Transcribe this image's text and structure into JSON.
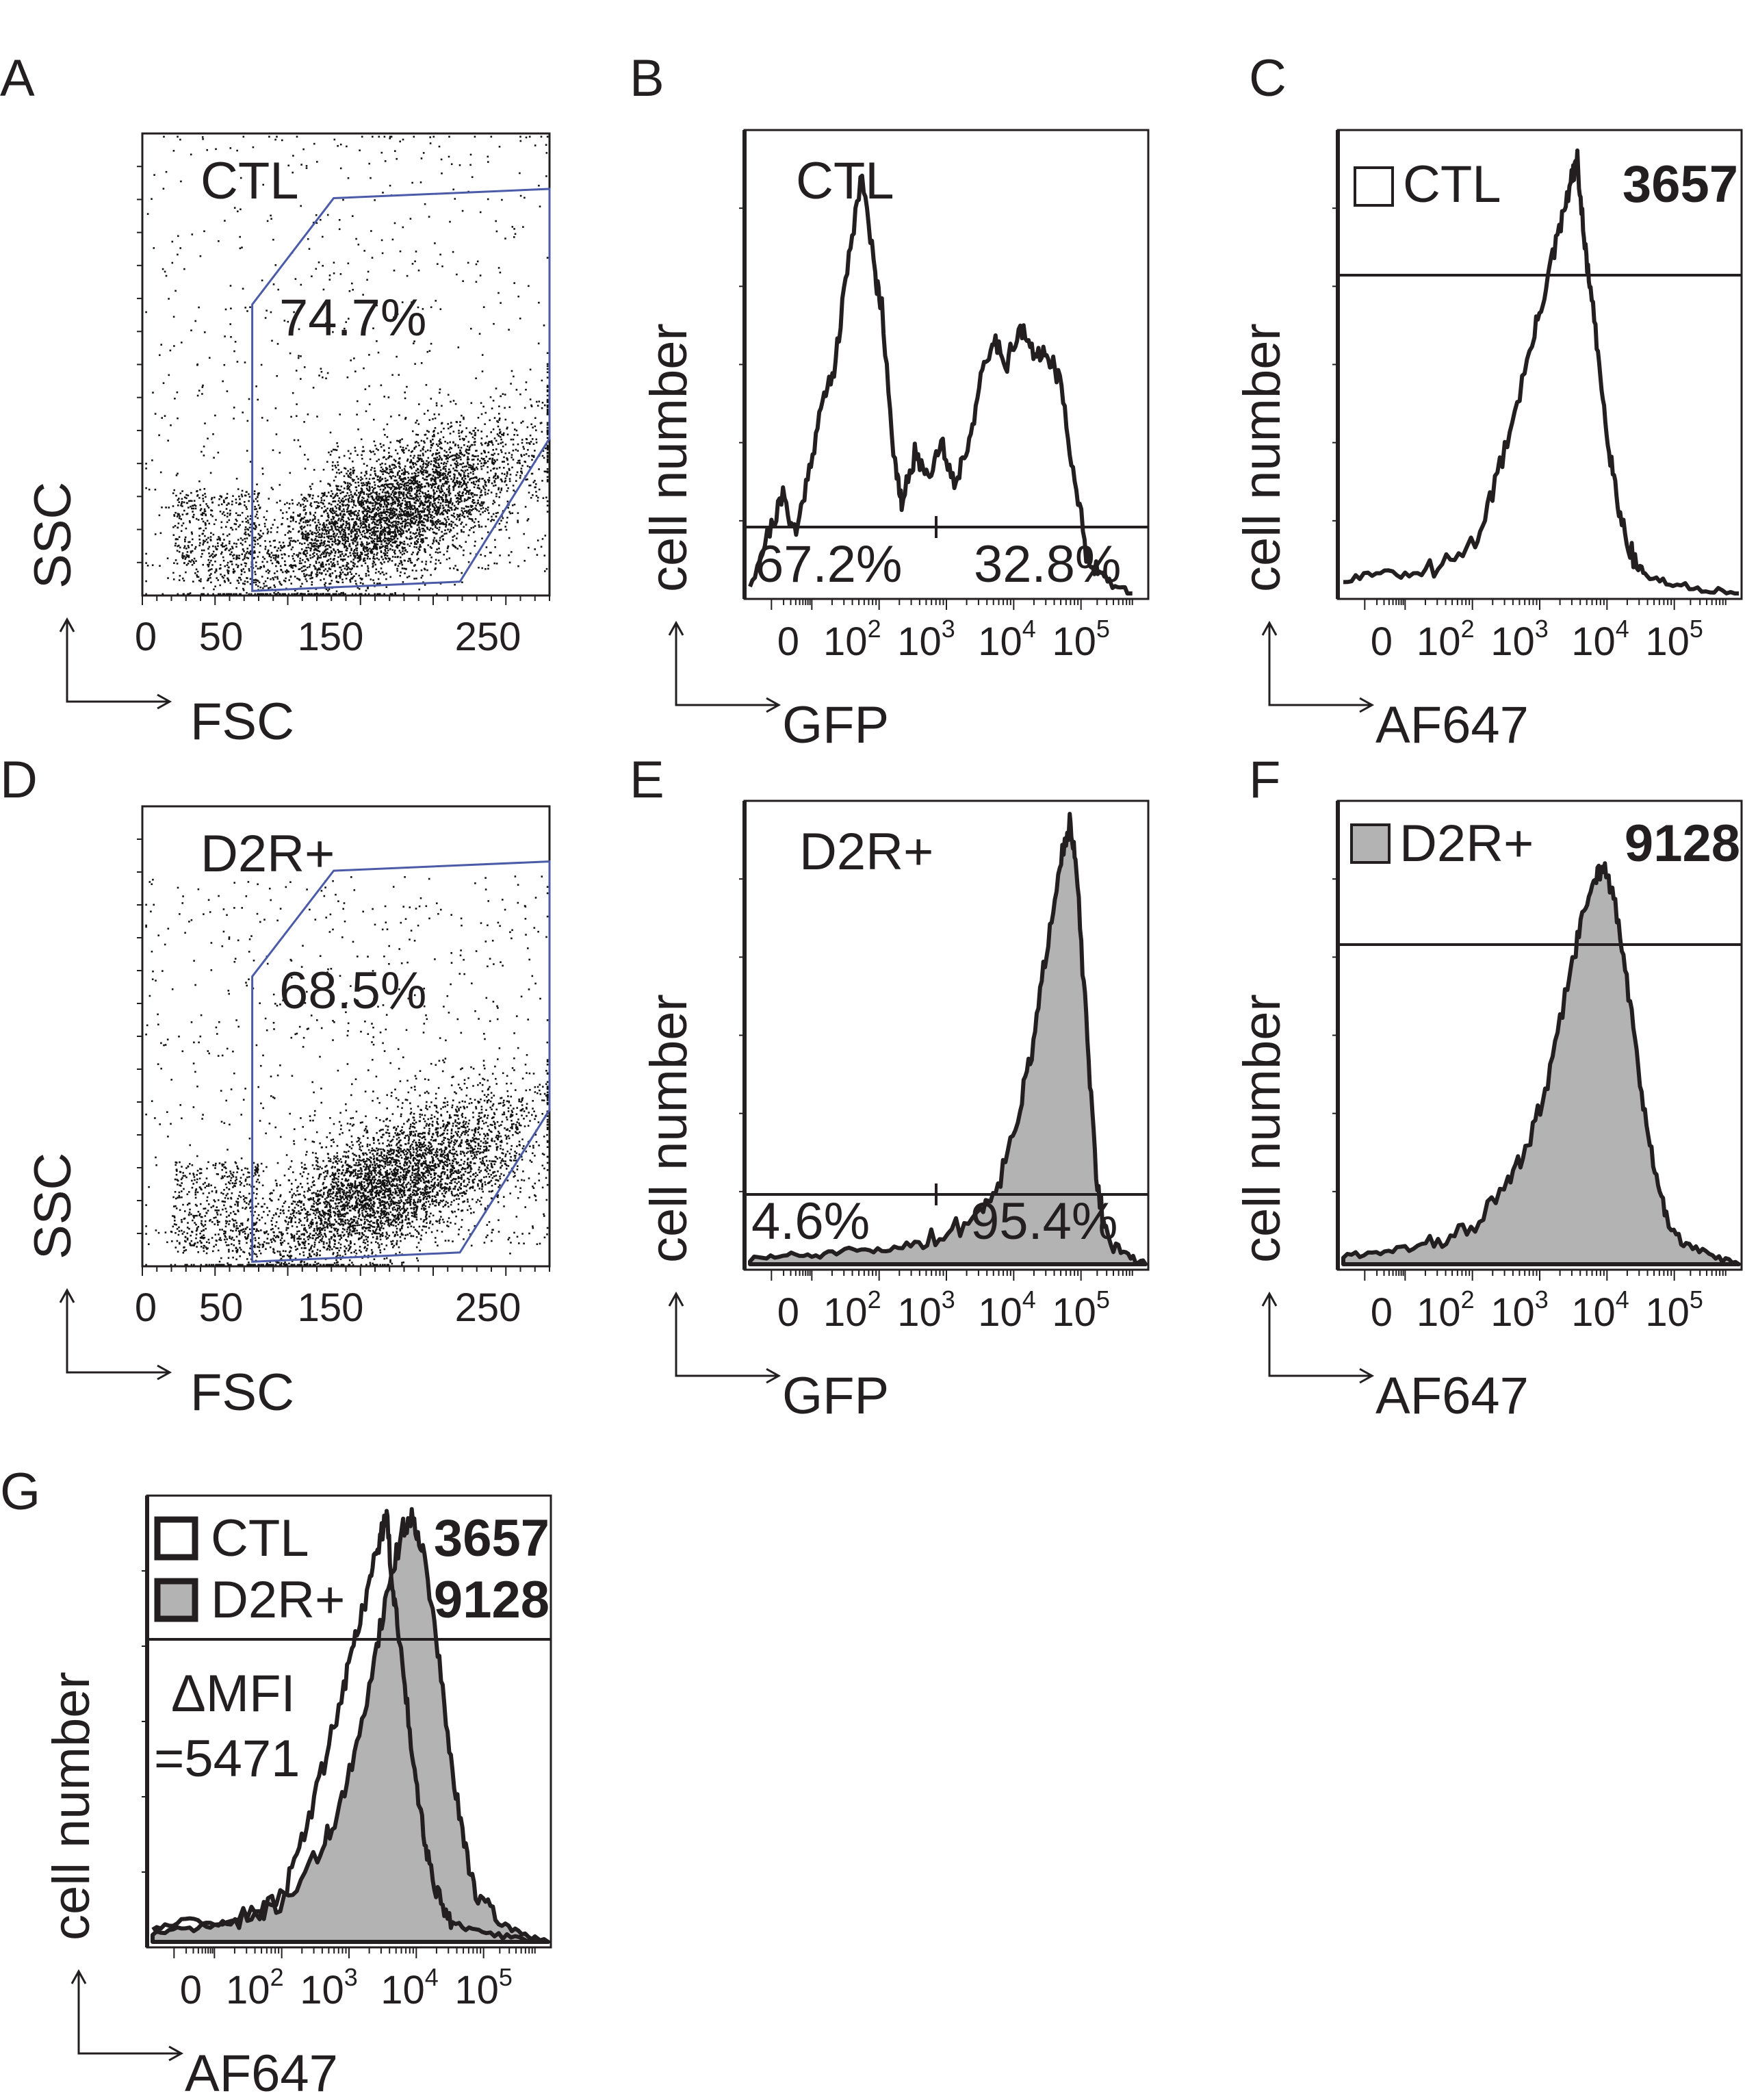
{
  "figure": {
    "panel_letters": [
      "A",
      "B",
      "C",
      "D",
      "E",
      "F",
      "G"
    ]
  },
  "chart_data": [
    {
      "panel": "A",
      "type": "scatter",
      "title": "CTL",
      "xlabel": "FSC",
      "ylabel": "SSC",
      "x_ticks": [
        "0",
        "50",
        "150",
        "250"
      ],
      "xlim": [
        0,
        280
      ],
      "gate_percent": "74.7%",
      "gate_color": "#4b5ba8"
    },
    {
      "panel": "B",
      "type": "area",
      "title": "CTL",
      "xlabel": "GFP",
      "ylabel": "cell number",
      "x_ticks": [
        "0",
        "10",
        "10",
        "10",
        "10"
      ],
      "x_tick_exps": [
        "",
        "2",
        "3",
        "4",
        "5"
      ],
      "xlim": [
        0,
        6.0
      ],
      "gate_left_percent": "67.2%",
      "gate_right_percent": "32.8%",
      "series": [
        {
          "name": "CTL",
          "fill": "none",
          "x": [
            0.0,
            0.3,
            0.5,
            0.7,
            0.9,
            1.1,
            1.3,
            1.5,
            1.7,
            1.9,
            2.0,
            2.2,
            2.3,
            2.5,
            2.7,
            2.9,
            3.1,
            3.3,
            3.5,
            3.7,
            3.9,
            4.1,
            4.3,
            4.5,
            4.7,
            4.9,
            5.1,
            5.3,
            5.5,
            5.8
          ],
          "values": [
            0.02,
            0.15,
            0.23,
            0.14,
            0.3,
            0.45,
            0.55,
            0.8,
            1.0,
            0.75,
            0.68,
            0.3,
            0.21,
            0.33,
            0.28,
            0.36,
            0.26,
            0.35,
            0.5,
            0.6,
            0.55,
            0.63,
            0.56,
            0.58,
            0.5,
            0.3,
            0.1,
            0.05,
            0.02,
            0.0
          ]
        }
      ]
    },
    {
      "panel": "C",
      "type": "area",
      "title": "CTL",
      "xlabel": "AF647",
      "ylabel": "cell number",
      "x_ticks": [
        "0",
        "10",
        "10",
        "10",
        "10"
      ],
      "x_tick_exps": [
        "",
        "2",
        "3",
        "4",
        "5"
      ],
      "xlim": [
        0,
        6.0
      ],
      "legend": [
        {
          "label": "CTL",
          "mfi": "3657",
          "fill": "#ffffff"
        }
      ],
      "series": [
        {
          "name": "CTL",
          "fill": "none",
          "x": [
            0.0,
            0.5,
            1.0,
            1.5,
            2.0,
            2.3,
            2.6,
            2.9,
            3.1,
            3.3,
            3.45,
            3.55,
            3.65,
            3.75,
            3.9,
            4.05,
            4.2,
            4.4,
            4.6,
            5.0,
            5.5,
            6.0
          ],
          "values": [
            0.03,
            0.05,
            0.04,
            0.06,
            0.12,
            0.25,
            0.42,
            0.6,
            0.73,
            0.85,
            0.95,
            1.0,
            0.82,
            0.7,
            0.5,
            0.32,
            0.18,
            0.08,
            0.04,
            0.02,
            0.01,
            0.0
          ]
        }
      ]
    },
    {
      "panel": "D",
      "type": "scatter",
      "title": "D2R+",
      "xlabel": "FSC",
      "ylabel": "SSC",
      "x_ticks": [
        "0",
        "50",
        "150",
        "250"
      ],
      "xlim": [
        0,
        280
      ],
      "gate_percent": "68.5%",
      "gate_color": "#4b5ba8"
    },
    {
      "panel": "E",
      "type": "area",
      "title": "D2R+",
      "xlabel": "GFP",
      "ylabel": "cell number",
      "x_ticks": [
        "0",
        "10",
        "10",
        "10",
        "10"
      ],
      "x_tick_exps": [
        "",
        "2",
        "3",
        "4",
        "5"
      ],
      "xlim": [
        0,
        6.0
      ],
      "gate_left_percent": "4.6%",
      "gate_right_percent": "95.4%",
      "series": [
        {
          "name": "D2R+",
          "fill": "#b3b3b3",
          "x": [
            0.0,
            0.5,
            1.0,
            1.5,
            2.0,
            2.5,
            3.0,
            3.5,
            3.8,
            4.1,
            4.3,
            4.5,
            4.7,
            4.85,
            4.95,
            5.1,
            5.25,
            5.4,
            5.7,
            6.0
          ],
          "values": [
            0.01,
            0.02,
            0.02,
            0.03,
            0.03,
            0.05,
            0.07,
            0.12,
            0.2,
            0.36,
            0.5,
            0.72,
            0.92,
            1.0,
            0.9,
            0.55,
            0.2,
            0.07,
            0.02,
            0.0
          ]
        }
      ]
    },
    {
      "panel": "F",
      "type": "area",
      "title": "D2R+",
      "xlabel": "AF647",
      "ylabel": "cell number",
      "x_ticks": [
        "0",
        "10",
        "10",
        "10",
        "10"
      ],
      "x_tick_exps": [
        "",
        "2",
        "3",
        "4",
        "5"
      ],
      "xlim": [
        0,
        6.0
      ],
      "legend": [
        {
          "label": "D2R+",
          "mfi": "9128",
          "fill": "#b3b3b3"
        }
      ],
      "series": [
        {
          "name": "D2R+",
          "fill": "#b3b3b3",
          "x": [
            0.0,
            0.5,
            1.0,
            1.5,
            2.0,
            2.5,
            2.8,
            3.1,
            3.4,
            3.6,
            3.8,
            3.95,
            4.1,
            4.3,
            4.5,
            4.7,
            4.9,
            5.2,
            5.6,
            6.0
          ],
          "values": [
            0.02,
            0.03,
            0.04,
            0.06,
            0.1,
            0.2,
            0.3,
            0.45,
            0.7,
            0.85,
            0.97,
            1.0,
            0.92,
            0.72,
            0.45,
            0.25,
            0.12,
            0.05,
            0.02,
            0.0
          ]
        }
      ]
    },
    {
      "panel": "G",
      "type": "area",
      "xlabel": "AF647",
      "ylabel": "cell number",
      "x_ticks": [
        "0",
        "10",
        "10",
        "10",
        "10"
      ],
      "x_tick_exps": [
        "",
        "2",
        "3",
        "4",
        "5"
      ],
      "xlim": [
        0,
        6.0
      ],
      "annotation_line1": "ΔMFI",
      "annotation_line2": "=5471",
      "legend": [
        {
          "label": "CTL",
          "mfi": "3657",
          "fill": "#ffffff"
        },
        {
          "label": "D2R+",
          "mfi": "9128",
          "fill": "#b3b3b3"
        }
      ],
      "series": [
        {
          "name": "D2R+",
          "fill": "#b3b3b3",
          "x": [
            0.0,
            0.5,
            1.0,
            1.5,
            2.0,
            2.5,
            2.8,
            3.1,
            3.4,
            3.6,
            3.8,
            3.95,
            4.1,
            4.3,
            4.5,
            4.7,
            4.9,
            5.2,
            5.6,
            6.0
          ],
          "values": [
            0.02,
            0.03,
            0.04,
            0.06,
            0.1,
            0.2,
            0.3,
            0.45,
            0.7,
            0.85,
            0.97,
            1.0,
            0.92,
            0.72,
            0.45,
            0.25,
            0.12,
            0.05,
            0.02,
            0.0
          ]
        },
        {
          "name": "CTL",
          "fill": "none",
          "x": [
            0.0,
            0.5,
            1.0,
            1.5,
            2.0,
            2.3,
            2.6,
            2.9,
            3.1,
            3.3,
            3.45,
            3.55,
            3.65,
            3.75,
            3.9,
            4.05,
            4.2,
            4.4,
            4.6,
            5.0,
            5.5,
            6.0
          ],
          "values": [
            0.03,
            0.05,
            0.04,
            0.06,
            0.12,
            0.25,
            0.42,
            0.6,
            0.73,
            0.85,
            0.95,
            1.0,
            0.82,
            0.7,
            0.5,
            0.32,
            0.18,
            0.08,
            0.04,
            0.02,
            0.01,
            0.0
          ]
        }
      ]
    }
  ]
}
